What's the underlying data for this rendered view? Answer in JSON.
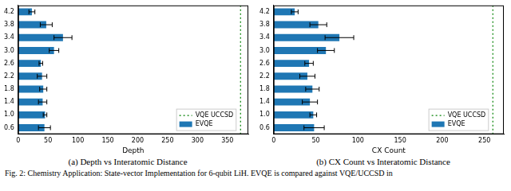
{
  "caption": "Fig. 2: Chemistry Application: State-vector Implementation for 6-qubit LiH. EVQE is compared against VQE/UCCSD in",
  "chart_data": [
    {
      "type": "bar",
      "orientation": "horizontal",
      "title": "(a) Depth vs Interatomic Distance",
      "x_label": "Depth",
      "categories": [
        "0.6",
        "1.0",
        "1.4",
        "1.8",
        "2.2",
        "2.6",
        "3.0",
        "3.4",
        "3.8",
        "4.2"
      ],
      "series": [
        {
          "name": "EVQE",
          "color": "#1f77b4",
          "values": [
            44,
            45,
            41,
            42,
            40,
            38,
            60,
            75,
            47,
            23
          ],
          "errors": [
            10,
            3,
            7,
            6,
            8,
            3,
            8,
            15,
            10,
            5
          ]
        }
      ],
      "reference_line": {
        "name": "VQE UCCSD",
        "value": 372,
        "color": "#008000",
        "line_style": "dotted"
      },
      "xlim": [
        0,
        385
      ],
      "xticks": [
        0,
        50,
        100,
        150,
        200,
        250,
        300,
        350
      ],
      "grid": false,
      "legend": "lower right"
    },
    {
      "type": "bar",
      "orientation": "horizontal",
      "title": "(b) CX Count vs Interatomic Distance",
      "x_label": "CX Count",
      "categories": [
        "0.6",
        "1.0",
        "1.4",
        "1.8",
        "2.2",
        "2.6",
        "3.0",
        "3.4",
        "3.8",
        "4.2"
      ],
      "series": [
        {
          "name": "EVQE",
          "color": "#1f77b4",
          "values": [
            48,
            47,
            43,
            46,
            40,
            42,
            62,
            78,
            53,
            25
          ],
          "errors": [
            12,
            4,
            9,
            8,
            9,
            5,
            10,
            17,
            10,
            4
          ]
        }
      ],
      "reference_line": {
        "name": "VQE UCCSD",
        "value": 260,
        "color": "#008000",
        "line_style": "dotted"
      },
      "xlim": [
        0,
        273
      ],
      "xticks": [
        0,
        50,
        100,
        150,
        200,
        250
      ],
      "grid": false,
      "legend": "lower right"
    }
  ]
}
